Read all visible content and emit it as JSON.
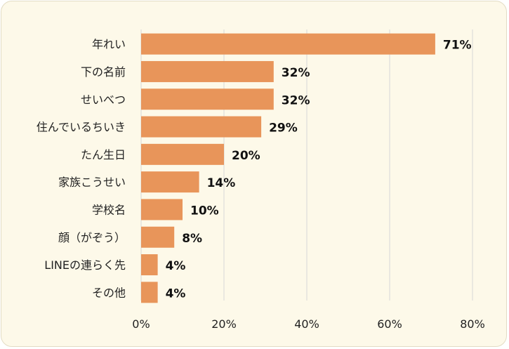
{
  "chart_data": {
    "type": "bar",
    "orientation": "horizontal",
    "categories": [
      "年れい",
      "下の名前",
      "せいべつ",
      "住んでいるちいき",
      "たん生日",
      "家族こうせい",
      "学校名",
      "顔（がぞう）",
      "LINEの連らく先",
      "その他"
    ],
    "values": [
      71,
      32,
      32,
      29,
      20,
      14,
      10,
      8,
      4,
      4
    ],
    "value_labels": [
      "71%",
      "32%",
      "32%",
      "29%",
      "20%",
      "14%",
      "10%",
      "8%",
      "4%",
      "4%"
    ],
    "x_ticks": [
      "0%",
      "20%",
      "40%",
      "60%",
      "80%"
    ],
    "x_tick_values": [
      0,
      20,
      40,
      60,
      80
    ],
    "xlim": [
      0,
      80
    ],
    "grid": true,
    "bar_color": "#e8955a",
    "grid_color": "#d6d6d6",
    "background": "#fdf9e9"
  }
}
